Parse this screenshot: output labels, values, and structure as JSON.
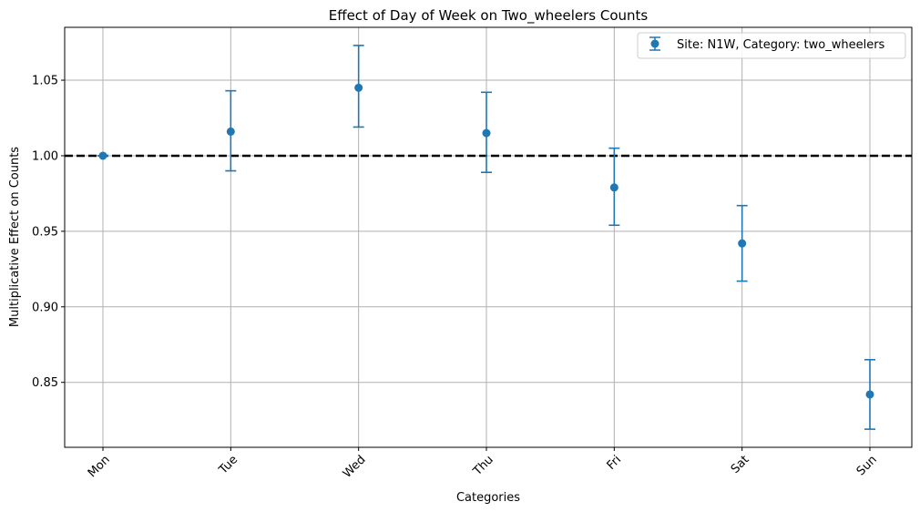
{
  "chart_data": {
    "type": "errorbar",
    "title": "Effect of Day of Week on Two_wheelers Counts",
    "xlabel": "Categories",
    "ylabel": "Multiplicative Effect on Counts",
    "categories": [
      "Mon",
      "Tue",
      "Wed",
      "Thu",
      "Fri",
      "Sat",
      "Sun"
    ],
    "series": [
      {
        "name": "Site: N1W, Category: two_wheelers",
        "values": [
          1.0,
          1.016,
          1.045,
          1.015,
          0.979,
          0.942,
          0.842
        ],
        "lower": [
          1.0,
          0.99,
          1.019,
          0.989,
          0.954,
          0.917,
          0.819
        ],
        "upper": [
          1.0,
          1.043,
          1.073,
          1.042,
          1.005,
          0.967,
          0.865
        ]
      }
    ],
    "reference_line": 1.0,
    "ylim": [
      0.807,
      1.085
    ],
    "yticks": [
      0.85,
      0.9,
      0.95,
      1.0,
      1.05
    ],
    "ytick_labels": [
      "0.85",
      "0.90",
      "0.95",
      "1.00",
      "1.05"
    ],
    "grid": true,
    "legend_position": "top-right",
    "colors": {
      "series": "#1f77b4",
      "grid": "#b0b0b0",
      "reference": "#000000"
    }
  }
}
